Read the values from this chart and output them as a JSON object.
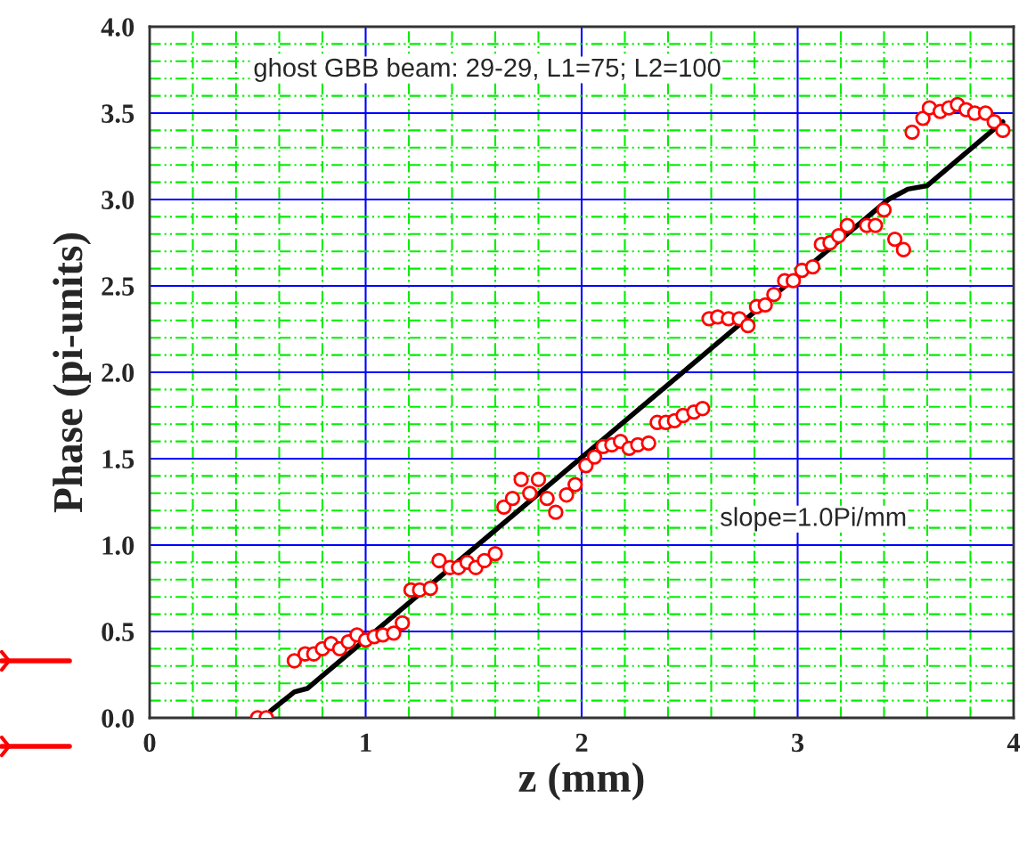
{
  "chart_data": {
    "type": "scatter",
    "xlabel": "z (mm)",
    "ylabel": "Phase (pi-units)",
    "annotations": [
      "ghost GBB beam: 29-29, L1=75; L2=100",
      "slope=1.0Pi/mm"
    ],
    "xlim": [
      0,
      4
    ],
    "ylim": [
      0,
      4
    ],
    "xticks": [
      0,
      {
        "value": 0.2,
        "label": null
      },
      {
        "value": 0.4,
        "label": null
      },
      {
        "value": 0.6,
        "label": null
      },
      {
        "value": 0.8,
        "label": null
      },
      1,
      {
        "value": 1.2,
        "label": null
      },
      {
        "value": 1.4,
        "label": null
      },
      {
        "value": 1.6,
        "label": null
      },
      {
        "value": 1.8,
        "label": null
      },
      2,
      {
        "value": 2.2,
        "label": null
      },
      {
        "value": 2.4,
        "label": null
      },
      {
        "value": 2.6,
        "label": null
      },
      {
        "value": 2.8,
        "label": null
      },
      3,
      {
        "value": 3.2,
        "label": null
      },
      {
        "value": 3.4,
        "label": null
      },
      {
        "value": 3.6,
        "label": null
      },
      {
        "value": 3.8,
        "label": null
      },
      4
    ],
    "yticks": [
      {
        "value": 0,
        "label": "0.0"
      },
      {
        "value": 0.1,
        "label": null
      },
      {
        "value": 0.2,
        "label": null
      },
      {
        "value": 0.3,
        "label": null
      },
      {
        "value": 0.4,
        "label": null
      },
      0.5,
      {
        "value": 0.6,
        "label": null
      },
      {
        "value": 0.7,
        "label": null
      },
      {
        "value": 0.8,
        "label": null
      },
      {
        "value": 0.9,
        "label": null
      },
      {
        "value": 1,
        "label": "1.0"
      },
      {
        "value": 1.1,
        "label": null
      },
      {
        "value": 1.2,
        "label": null
      },
      {
        "value": 1.3,
        "label": null
      },
      {
        "value": 1.4,
        "label": null
      },
      1.5,
      {
        "value": 1.6,
        "label": null
      },
      {
        "value": 1.7,
        "label": null
      },
      {
        "value": 1.8,
        "label": null
      },
      {
        "value": 1.9,
        "label": null
      },
      {
        "value": 2,
        "label": "2.0"
      },
      {
        "value": 2.1,
        "label": null
      },
      {
        "value": 2.2,
        "label": null
      },
      {
        "value": 2.3,
        "label": null
      },
      {
        "value": 2.4,
        "label": null
      },
      2.5,
      {
        "value": 2.6,
        "label": null
      },
      {
        "value": 2.7,
        "label": null
      },
      {
        "value": 2.8,
        "label": null
      },
      {
        "value": 2.9,
        "label": null
      },
      {
        "value": 3,
        "label": "3.0"
      },
      {
        "value": 3.1,
        "label": null
      },
      {
        "value": 3.2,
        "label": null
      },
      {
        "value": 3.3,
        "label": null
      },
      {
        "value": 3.4,
        "label": null
      },
      3.5,
      {
        "value": 3.6,
        "label": null
      },
      {
        "value": 3.7,
        "label": null
      },
      {
        "value": 3.8,
        "label": null
      },
      {
        "value": 3.9,
        "label": null
      },
      {
        "value": 4,
        "label": "4.0"
      }
    ],
    "grid": true,
    "series": [
      {
        "color": "#ff0000",
        "marker": "circle",
        "x": [
          0.5,
          0.54,
          0.67,
          0.72,
          0.76,
          0.8,
          0.84,
          0.88,
          0.92,
          0.96,
          1.0,
          1.04,
          1.08,
          1.13,
          1.17,
          1.21,
          1.25,
          1.3,
          1.34,
          1.39,
          1.43,
          1.47,
          1.51,
          1.55,
          1.6,
          1.64,
          1.68,
          1.72,
          1.76,
          1.8,
          1.84,
          1.88,
          1.93,
          1.97,
          2.02,
          2.06,
          2.1,
          2.14,
          2.18,
          2.22,
          2.26,
          2.31,
          2.35,
          2.39,
          2.43,
          2.47,
          2.52,
          2.56,
          2.59,
          2.63,
          2.68,
          2.73,
          2.77,
          2.81,
          2.85,
          2.89,
          2.94,
          2.98,
          3.02,
          3.07,
          3.11,
          3.15,
          3.19,
          3.23,
          3.32,
          3.36,
          3.4,
          3.45,
          3.49,
          3.53,
          3.58,
          3.61,
          3.66,
          3.7,
          3.74,
          3.78,
          3.82,
          3.87,
          3.91,
          3.95
        ],
        "values": [
          0.0,
          0.0,
          0.33,
          0.37,
          0.37,
          0.4,
          0.43,
          0.4,
          0.44,
          0.48,
          0.45,
          0.47,
          0.48,
          0.49,
          0.55,
          0.74,
          0.74,
          0.75,
          0.91,
          0.87,
          0.87,
          0.9,
          0.87,
          0.91,
          0.95,
          1.22,
          1.27,
          1.38,
          1.3,
          1.38,
          1.27,
          1.19,
          1.29,
          1.35,
          1.46,
          1.51,
          1.57,
          1.58,
          1.6,
          1.56,
          1.58,
          1.59,
          1.71,
          1.71,
          1.72,
          1.75,
          1.77,
          1.79,
          2.31,
          2.32,
          2.31,
          2.31,
          2.27,
          2.38,
          2.39,
          2.45,
          2.53,
          2.53,
          2.59,
          2.61,
          2.74,
          2.75,
          2.79,
          2.85,
          2.85,
          2.85,
          2.94,
          2.77,
          2.71,
          3.39,
          3.47,
          3.53,
          3.51,
          3.53,
          3.55,
          3.52,
          3.5,
          3.5,
          3.45,
          3.4
        ]
      },
      {
        "type": "line",
        "color": "#000000",
        "line_style": "solid",
        "x": [
          0.54,
          0.56,
          0.67,
          0.73,
          3.0,
          3.42,
          3.51,
          3.6,
          3.95
        ],
        "values": [
          0.0,
          0.04,
          0.15,
          0.17,
          2.56,
          3.0,
          3.06,
          3.08,
          3.45
        ]
      }
    ]
  }
}
